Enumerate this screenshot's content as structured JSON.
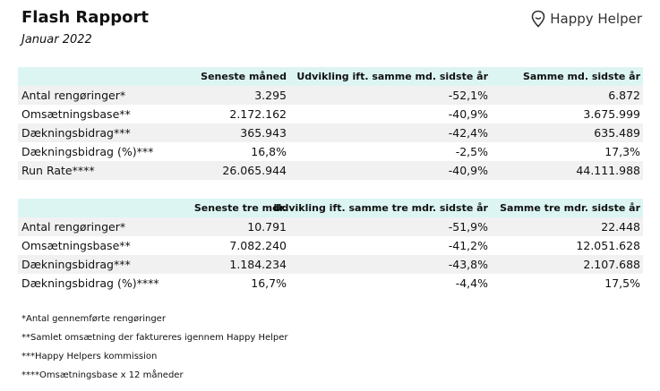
{
  "header": {
    "title": "Flash Rapport",
    "subtitle": "Januar 2022",
    "logo": "Happy Helper"
  },
  "tables": [
    {
      "columns": [
        "Seneste måned",
        "Udvikling ift. samme md. sidste år",
        "Samme md. sidste år"
      ],
      "rows": [
        [
          "Antal rengøringer*",
          "3.295",
          "-52,1%",
          "6.872"
        ],
        [
          "Omsætningsbase**",
          "2.172.162",
          "-40,9%",
          "3.675.999"
        ],
        [
          "Dækningsbidrag***",
          "365.943",
          "-42,4%",
          "635.489"
        ],
        [
          "Dækningsbidrag (%)***",
          "16,8%",
          "-2,5%",
          "17,3%"
        ],
        [
          "Run Rate****",
          "26.065.944",
          "-40,9%",
          "44.111.988"
        ]
      ]
    },
    {
      "columns": [
        "Seneste tre mdr.",
        "Udvikling ift. samme tre mdr. sidste år",
        "Samme tre mdr. sidste år"
      ],
      "rows": [
        [
          "Antal rengøringer*",
          "10.791",
          "-51,9%",
          "22.448"
        ],
        [
          "Omsætningsbase**",
          "7.082.240",
          "-41,2%",
          "12.051.628"
        ],
        [
          "Dækningsbidrag***",
          "1.184.234",
          "-43,8%",
          "2.107.688"
        ],
        [
          "Dækningsbidrag (%)****",
          "16,7%",
          "-4,4%",
          "17,5%"
        ]
      ]
    }
  ],
  "footnotes": [
    "*Antal gennemførte rengøringer",
    "**Samlet omsætning der faktureres igennem Happy Helper",
    "***Happy Helpers kommission",
    "****Omsætningsbase x 12 måneder"
  ]
}
